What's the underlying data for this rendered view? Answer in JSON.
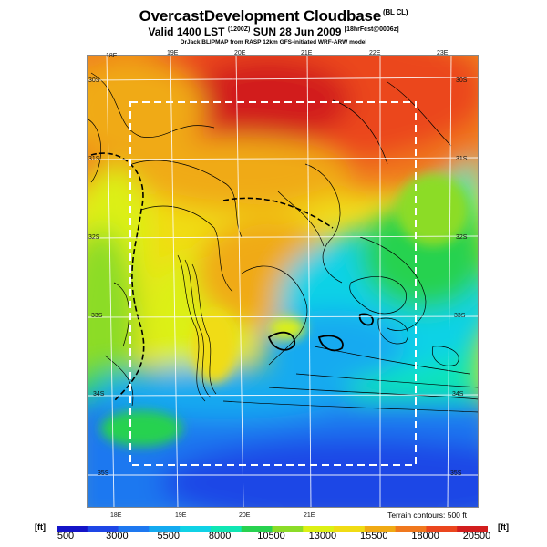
{
  "title": "OvercastDevelopment Cloudbase",
  "title_tag": "(BL CL)",
  "subtitle_main": "Valid 1400 LST",
  "subtitle_code": "(1200Z)",
  "subtitle_date": "SUN 28 Jun 2009",
  "subtitle_fcst": "[18hrFcst@0006z]",
  "credit": "DrJack BLIPMAP from RASP 12km GFS-initiated WRF-ARW model",
  "terrain_note": "Terrain contours: 500 ft",
  "unit_left": "[ft]",
  "unit_right": "[ft]",
  "legend_labels": [
    "500",
    "3000",
    "5500",
    "8000",
    "10500",
    "13000",
    "15500",
    "18000",
    "20500"
  ],
  "lon_top": [
    "18E",
    "19E",
    "20E",
    "21E",
    "22E",
    "23E"
  ],
  "lon_bottom": [
    "18E",
    "19E",
    "20E",
    "21E"
  ],
  "lat_right": [
    "30S",
    "31S",
    "32S",
    "33S",
    "34S",
    "35S"
  ],
  "lat_left": [
    "30S",
    "31S",
    "32S",
    "33S",
    "34S",
    "35S"
  ],
  "colors": {
    "scale": [
      "#1414c8",
      "#1e46e6",
      "#1e78f0",
      "#14aaf0",
      "#10d2e6",
      "#10e6b4",
      "#28d250",
      "#8cdc28",
      "#dcf014",
      "#f0dc14",
      "#f0aa14",
      "#f0781e",
      "#eb461e",
      "#d21e1e"
    ],
    "dashed_box": "#ffffff",
    "grid": "#ffffff",
    "contours": "#000000"
  }
}
